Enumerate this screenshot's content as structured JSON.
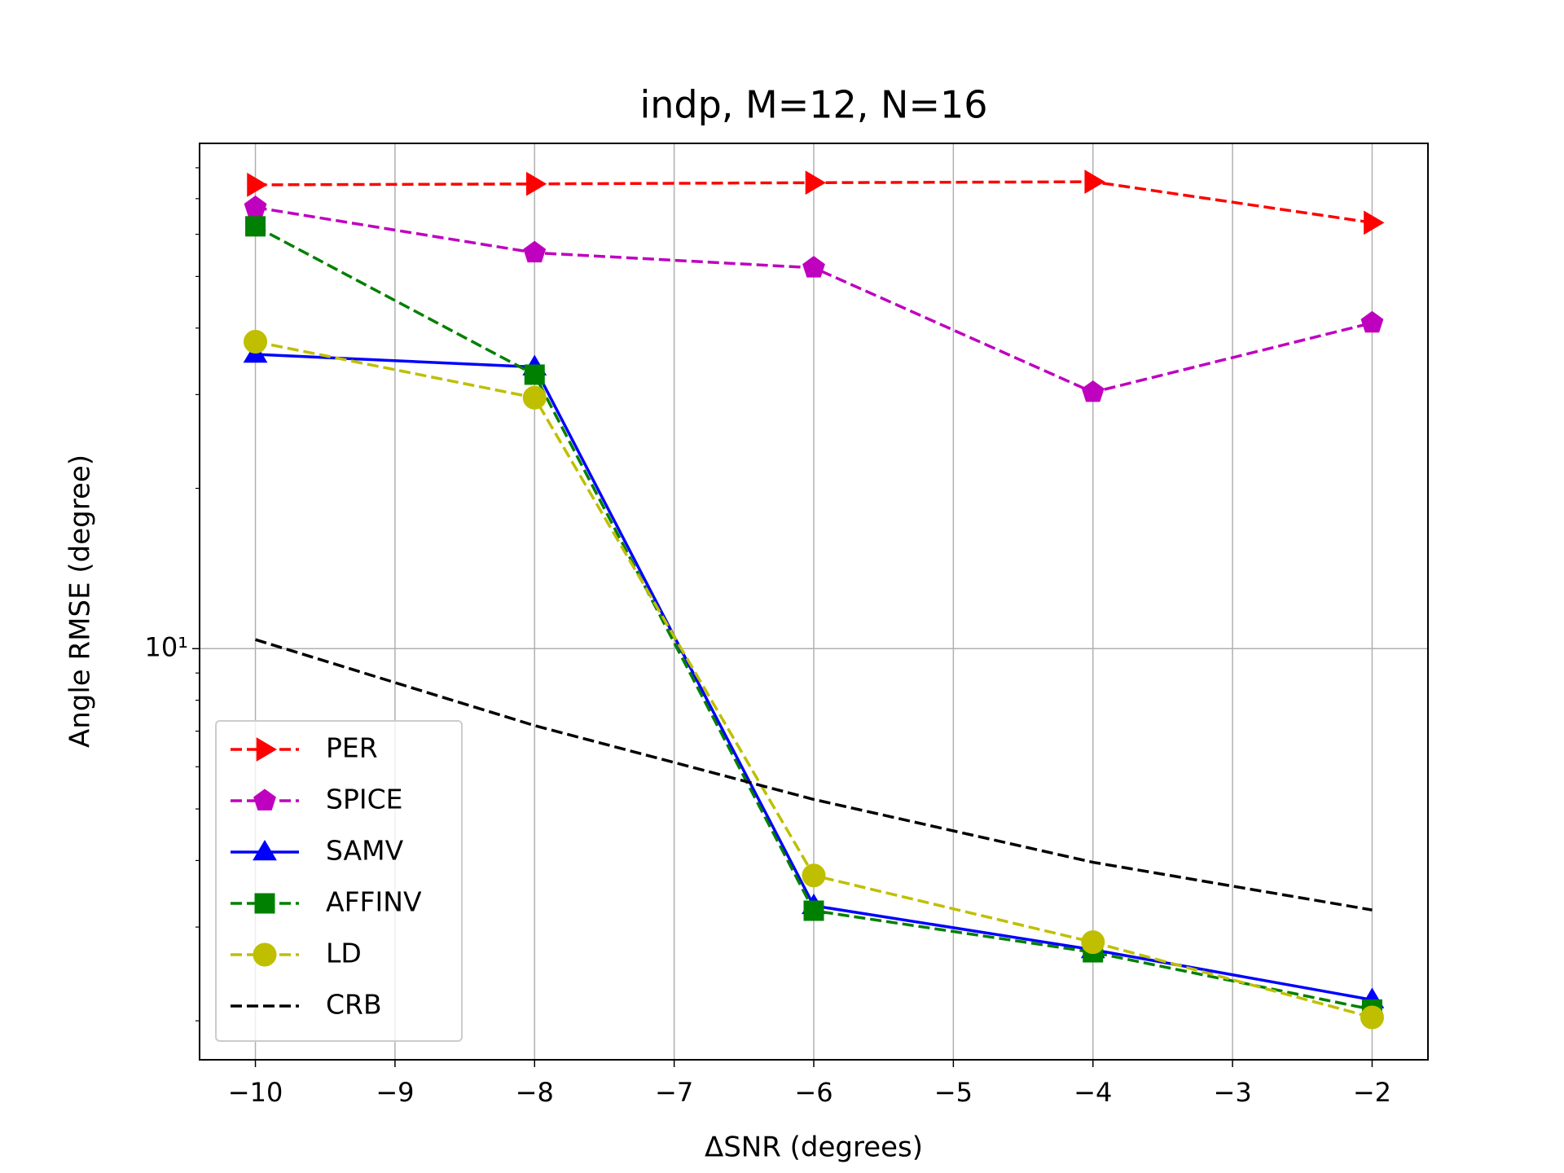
{
  "chart_data": {
    "type": "line",
    "title": "indp, M=12, N=16",
    "x_label": "ΔSNR (degrees)",
    "y_label": "Angle RMSE (degree)",
    "x": [
      -10,
      -8,
      -6,
      -4,
      -2
    ],
    "xlim": [
      -10.4,
      -1.6
    ],
    "xticks": [
      {
        "value": -10,
        "label": "−10"
      },
      {
        "value": -9,
        "label": "−9"
      },
      {
        "value": -8,
        "label": "−8"
      },
      {
        "value": -7,
        "label": "−7"
      },
      {
        "value": -6,
        "label": "−6"
      },
      {
        "value": -5,
        "label": "−5"
      },
      {
        "value": -4,
        "label": "−4"
      },
      {
        "value": -3,
        "label": "−3"
      },
      {
        "value": -2,
        "label": "−2"
      }
    ],
    "ylim": [
      1.69,
      88.9
    ],
    "y_scale": "log",
    "yticks": [
      {
        "value": 10,
        "label": "10¹"
      }
    ],
    "y_minor_ticks": [
      2,
      3,
      4,
      5,
      6,
      7,
      8,
      9,
      20,
      30,
      40,
      50,
      60,
      70,
      80
    ],
    "grid": true,
    "legend": "lower left",
    "series": [
      {
        "name": "PER",
        "color": "#ff0000",
        "marker": "triangle-right",
        "linestyle": "dashed",
        "values": [
          74.3,
          74.6,
          75.0,
          75.3,
          63.1
        ]
      },
      {
        "name": "SPICE",
        "color": "#bf00bf",
        "marker": "pentagon",
        "linestyle": "dashed",
        "values": [
          67.4,
          55.4,
          51.9,
          30.3,
          40.9
        ]
      },
      {
        "name": "SAMV",
        "color": "#0000ff",
        "marker": "triangle-up",
        "linestyle": "solid",
        "values": [
          35.7,
          33.8,
          3.29,
          2.72,
          2.19
        ]
      },
      {
        "name": "AFFINV",
        "color": "#008000",
        "marker": "square",
        "linestyle": "dashed",
        "values": [
          62.1,
          32.7,
          3.22,
          2.69,
          2.1
        ]
      },
      {
        "name": "LD",
        "color": "#bfbf00",
        "marker": "circle",
        "linestyle": "dashed",
        "values": [
          37.7,
          29.6,
          3.75,
          2.81,
          2.03
        ]
      },
      {
        "name": "CRB",
        "color": "#000000",
        "marker": "none",
        "linestyle": "dashed",
        "values": [
          10.4,
          7.17,
          5.21,
          3.97,
          3.23
        ]
      }
    ]
  }
}
